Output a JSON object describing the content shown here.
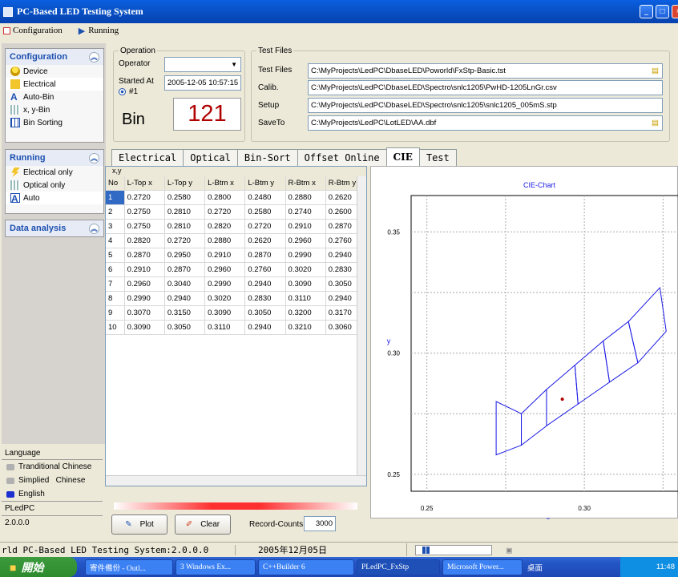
{
  "window": {
    "title": "PC-Based LED Testing System"
  },
  "menu": {
    "items": [
      "Configuration",
      "Running"
    ]
  },
  "sidebar": {
    "configuration": {
      "title": "Configuration",
      "items": [
        "Device",
        "Electrical",
        "Auto-Bin",
        "x, y-Bin",
        "Bin Sorting"
      ]
    },
    "running": {
      "title": "Running",
      "items": [
        "Electrical only",
        "Optical only",
        "Auto"
      ]
    },
    "analysis": {
      "title": "Data analysis"
    }
  },
  "language": {
    "title": "Language",
    "options": [
      "Tranditional Chinese",
      "Simplied   Chinese",
      "English"
    ],
    "app_name": "PLedPC",
    "version": "2.0.0.0"
  },
  "operation": {
    "group": "Operation",
    "operator_label": "Operator",
    "operator_value": "",
    "started_label": "Started At",
    "started_value": "2005-12-05 10:57:15",
    "radio": "#1",
    "bin_label": "Bin",
    "bin_value": "121"
  },
  "testfiles": {
    "group": "Test Files",
    "rows": [
      {
        "label": "Test Files",
        "value": "C:\\MyProjects\\LedPC\\DbaseLED\\Poworld\\FxStp-Basic.tst"
      },
      {
        "label": "Calib.",
        "value": "C:\\MyProjects\\LedPC\\DbaseLED\\Spectro\\snlc1205\\PwHD-1205LnGr.csv"
      },
      {
        "label": "Setup",
        "value": "C:\\MyProjects\\LedPC\\DbaseLED\\Spectro\\snlc1205\\snlc1205_005mS.stp"
      },
      {
        "label": "SaveTo",
        "value": "C:\\MyProjects\\LedPC\\LotLED\\AA.dbf"
      }
    ]
  },
  "tabs": [
    "Electrical",
    "Optical",
    "Bin-Sort",
    "Offset Online",
    "CIE",
    "Test"
  ],
  "grid": {
    "corner": "x,y",
    "headers": [
      "No",
      "L-Top x",
      "L-Top y",
      "L-Btm x",
      "L-Btm y",
      "R-Btm x",
      "R-Btm y"
    ],
    "rows": [
      [
        "1",
        "0.2720",
        "0.2580",
        "0.2800",
        "0.2480",
        "0.2880",
        "0.2620"
      ],
      [
        "2",
        "0.2750",
        "0.2810",
        "0.2720",
        "0.2580",
        "0.2740",
        "0.2600"
      ],
      [
        "3",
        "0.2750",
        "0.2810",
        "0.2820",
        "0.2720",
        "0.2910",
        "0.2870"
      ],
      [
        "4",
        "0.2820",
        "0.2720",
        "0.2880",
        "0.2620",
        "0.2960",
        "0.2760"
      ],
      [
        "5",
        "0.2870",
        "0.2950",
        "0.2910",
        "0.2870",
        "0.2990",
        "0.2940"
      ],
      [
        "6",
        "0.2910",
        "0.2870",
        "0.2960",
        "0.2760",
        "0.3020",
        "0.2830"
      ],
      [
        "7",
        "0.2960",
        "0.3040",
        "0.2990",
        "0.2940",
        "0.3090",
        "0.3050"
      ],
      [
        "8",
        "0.2990",
        "0.2940",
        "0.3020",
        "0.2830",
        "0.3110",
        "0.2940"
      ],
      [
        "9",
        "0.3070",
        "0.3150",
        "0.3090",
        "0.3050",
        "0.3200",
        "0.3170"
      ],
      [
        "10",
        "0.3090",
        "0.3050",
        "0.3110",
        "0.2940",
        "0.3210",
        "0.3060"
      ]
    ]
  },
  "controls": {
    "plot": "Plot",
    "clear": "Clear",
    "record_label": "Record-Counts",
    "record_value": "3000"
  },
  "chart_data": {
    "type": "line",
    "title": "CIE-Chart",
    "xlabel": "x",
    "ylabel": "y",
    "xlim": [
      0.245,
      0.33
    ],
    "ylim": [
      0.243,
      0.365
    ],
    "xticks": [
      "0.25",
      "0.30"
    ],
    "yticks": [
      "0.35",
      "0.30",
      "0.25"
    ],
    "grid": true,
    "quads": [
      [
        [
          0.272,
          0.258
        ],
        [
          0.272,
          0.28
        ],
        [
          0.28,
          0.275
        ],
        [
          0.28,
          0.262
        ]
      ],
      [
        [
          0.28,
          0.262
        ],
        [
          0.28,
          0.275
        ],
        [
          0.288,
          0.285
        ],
        [
          0.288,
          0.27
        ]
      ],
      [
        [
          0.288,
          0.27
        ],
        [
          0.288,
          0.285
        ],
        [
          0.297,
          0.295
        ],
        [
          0.298,
          0.279
        ]
      ],
      [
        [
          0.298,
          0.279
        ],
        [
          0.297,
          0.295
        ],
        [
          0.306,
          0.305
        ],
        [
          0.308,
          0.288
        ]
      ],
      [
        [
          0.308,
          0.288
        ],
        [
          0.306,
          0.305
        ],
        [
          0.314,
          0.313
        ],
        [
          0.317,
          0.296
        ]
      ],
      [
        [
          0.317,
          0.296
        ],
        [
          0.314,
          0.313
        ],
        [
          0.324,
          0.327
        ],
        [
          0.326,
          0.309
        ]
      ]
    ],
    "point": [
      0.293,
      0.281
    ]
  },
  "status": {
    "left": "rld PC-Based LED Testing System:2.0.0.0",
    "date": "2005年12月05日"
  },
  "taskbar": {
    "start": "開始",
    "tasks": [
      "寄件備份 - Outl...",
      "3 Windows Ex...",
      "C++Builder 6",
      "PLedPC_FxStp",
      "Microsoft Power..."
    ],
    "tray_label": "桌面",
    "clock": "11:48"
  },
  "colors": {
    "title_blue": "#0853c9",
    "bin_red": "#b00000",
    "chart_blue": "#1a1ae6"
  }
}
